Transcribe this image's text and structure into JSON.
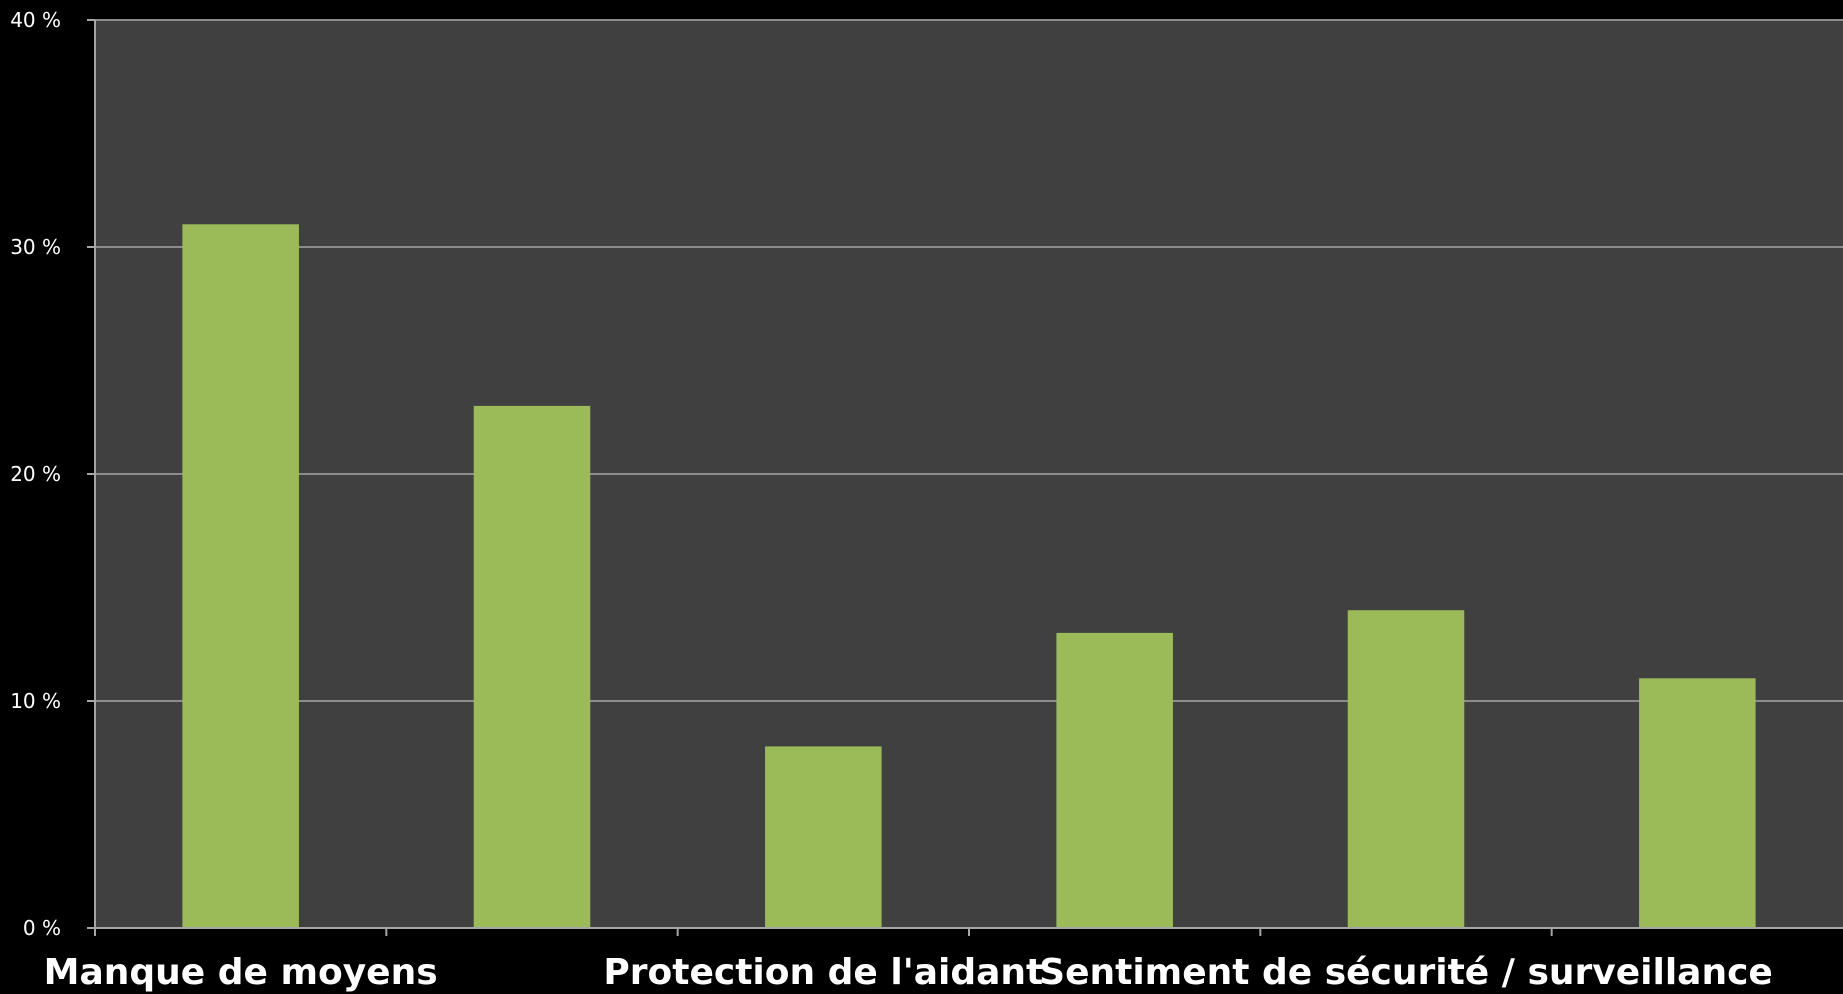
{
  "chart_data": {
    "type": "bar",
    "categories": [
      "Manque de moyens",
      "",
      "Protection de l'aidant",
      "",
      "Sentiment de sécurité / surveillance",
      ""
    ],
    "values": [
      31,
      23,
      8,
      13,
      14,
      11
    ],
    "ylim": [
      0,
      40
    ],
    "yticks": [
      0,
      10,
      20,
      30,
      40
    ],
    "ytick_labels": [
      "0 %",
      "10 %",
      "20 %",
      "30 %",
      "40 %"
    ],
    "grid": true,
    "colors": {
      "background": "#000000",
      "plot_area": "#404040",
      "bar": "#9bbb59",
      "grid": "#8c8c8c",
      "axis": "#a6a6a6",
      "text": "#ffffff"
    }
  }
}
